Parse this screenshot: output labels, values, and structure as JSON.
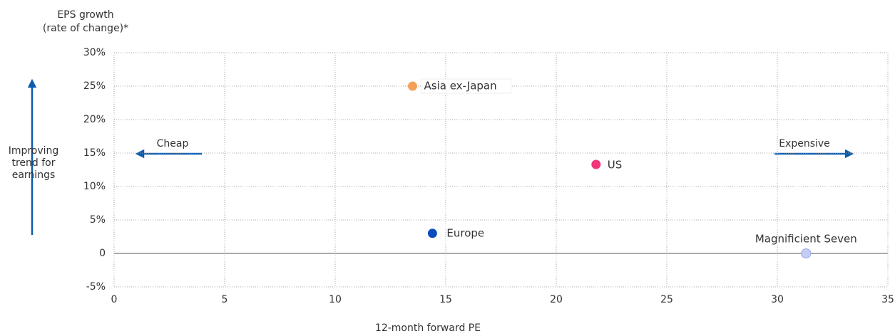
{
  "chart_data": {
    "type": "scatter",
    "y_label": [
      "EPS growth",
      "(rate of change)*"
    ],
    "x_label": "12-month forward PE",
    "annotations": {
      "trend": [
        "Improving",
        "trend for",
        "earnings"
      ],
      "left": "Cheap",
      "right": "Expensive"
    },
    "series": [
      {
        "name": "Asia ex-Japan",
        "color": "#f5a05a",
        "x": [
          13.5
        ],
        "values": [
          25
        ]
      },
      {
        "name": "Europe",
        "color": "#0b4dbf",
        "x": [
          14.4
        ],
        "values": [
          3
        ]
      },
      {
        "name": "US",
        "color": "#f0357a",
        "x": [
          21.8
        ],
        "values": [
          13.3
        ]
      },
      {
        "name": "Magnificient Seven",
        "color": "#c5cdf7",
        "x": [
          31.3
        ],
        "values": [
          0
        ]
      }
    ],
    "xlim": [
      0,
      35
    ],
    "xticks": [
      0,
      5,
      10,
      15,
      20,
      25,
      30,
      35
    ],
    "ylim": [
      -5,
      30
    ],
    "yticks": [
      {
        "value": -5,
        "label": "-5%"
      },
      0,
      {
        "value": 5,
        "label": "5%"
      },
      {
        "value": 10,
        "label": "10%"
      },
      {
        "value": 15,
        "label": "15%"
      },
      {
        "value": 20,
        "label": "20%"
      },
      {
        "value": 25,
        "label": "25%"
      },
      {
        "value": 30,
        "label": "30%"
      }
    ],
    "grid": true
  }
}
